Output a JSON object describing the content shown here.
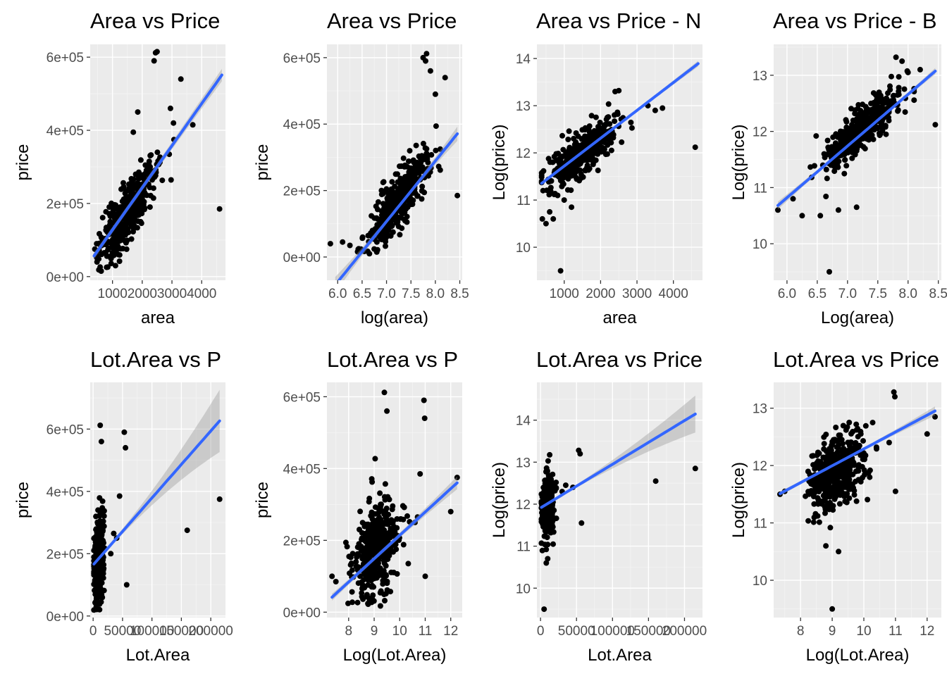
{
  "chart_data": [
    {
      "type": "scatter",
      "title": "Area vs Price",
      "xlabel": "area",
      "ylabel": "price",
      "xlim": [
        250,
        4800
      ],
      "ylim": [
        -10000,
        635000
      ],
      "xticks": [
        {
          "v": 1000,
          "label": "1000"
        },
        {
          "v": 2000,
          "label": "2000"
        },
        {
          "v": 3000,
          "label": "3000"
        },
        {
          "v": 4000,
          "label": "4000"
        }
      ],
      "yticks": [
        {
          "v": 0,
          "label": "0e+00"
        },
        {
          "v": 200000,
          "label": "2e+05"
        },
        {
          "v": 400000,
          "label": "4e+05"
        },
        {
          "v": 600000,
          "label": "6e+05"
        }
      ],
      "cloud": {
        "x_mean": 1500,
        "x_sd": 470,
        "x_min": 380,
        "x_max": 3300,
        "slope": 112,
        "intercept": 4000,
        "resid_sd": 38000,
        "y_min": 15000,
        "n": 420,
        "seed": 11
      },
      "points": [
        [
          2450,
          612000
        ],
        [
          2500,
          615000
        ],
        [
          2400,
          590000
        ],
        [
          4600,
          185000
        ],
        [
          3300,
          540000
        ],
        [
          3700,
          415000
        ],
        [
          1850,
          450000
        ],
        [
          1700,
          395000
        ],
        [
          2950,
          460000
        ],
        [
          3050,
          420000
        ],
        [
          1200,
          60000
        ],
        [
          900,
          55000
        ],
        [
          480,
          40000
        ],
        [
          620,
          15000
        ],
        [
          1100,
          30000
        ]
      ],
      "fit": {
        "intercept": 13000,
        "slope": 115,
        "x0": 380,
        "x1": 4680,
        "band_a": 8000,
        "band_b": 9000,
        "band_center": 1500
      },
      "fit_color": "#3366ff",
      "grid": true
    },
    {
      "type": "scatter",
      "title": "Area vs Price",
      "xlabel": "log(area)",
      "ylabel": "price",
      "xlim": [
        5.78,
        8.55
      ],
      "ylim": [
        -70000,
        640000
      ],
      "xticks": [
        {
          "v": 6.0,
          "label": "6.0"
        },
        {
          "v": 6.5,
          "label": "6.5"
        },
        {
          "v": 7.0,
          "label": "7.0"
        },
        {
          "v": 7.5,
          "label": "7.5"
        },
        {
          "v": 8.0,
          "label": "8.0"
        },
        {
          "v": 8.5,
          "label": "8.5"
        }
      ],
      "yticks": [
        {
          "v": 0,
          "label": "0e+00"
        },
        {
          "v": 200000,
          "label": "2e+05"
        },
        {
          "v": 400000,
          "label": "4e+05"
        },
        {
          "v": 600000,
          "label": "6e+05"
        }
      ],
      "cloud": {
        "x_mean": 7.25,
        "x_sd": 0.3,
        "x_min": 6.3,
        "x_max": 8.1,
        "slope": 185000,
        "intercept": -1172000,
        "resid_sd": 40000,
        "y_min": 15000,
        "n": 420,
        "seed": 23
      },
      "points": [
        [
          5.85,
          40000
        ],
        [
          6.1,
          45000
        ],
        [
          6.25,
          35000
        ],
        [
          6.8,
          15000
        ],
        [
          6.65,
          10000
        ],
        [
          8.45,
          185000
        ],
        [
          8.2,
          540000
        ],
        [
          8.0,
          490000
        ],
        [
          7.82,
          612000
        ],
        [
          7.8,
          590000
        ],
        [
          7.75,
          600000
        ],
        [
          7.9,
          560000
        ]
      ],
      "fit": {
        "intercept": -1167000,
        "slope": 182000,
        "x0": 5.95,
        "x1": 8.45,
        "band_a": 6000,
        "band_b": 18000,
        "band_center": 7.25
      },
      "fit_color": "#3366ff",
      "grid": true
    },
    {
      "type": "scatter",
      "title": "Area vs Price - N",
      "xlabel": "area",
      "ylabel": "Log(price)",
      "xlim": [
        250,
        4800
      ],
      "ylim": [
        9.3,
        14.3
      ],
      "xticks": [
        {
          "v": 1000,
          "label": "1000"
        },
        {
          "v": 2000,
          "label": "2000"
        },
        {
          "v": 3000,
          "label": "3000"
        },
        {
          "v": 4000,
          "label": "4000"
        }
      ],
      "yticks": [
        {
          "v": 10,
          "label": "10"
        },
        {
          "v": 11,
          "label": "11"
        },
        {
          "v": 12,
          "label": "12"
        },
        {
          "v": 13,
          "label": "13"
        },
        {
          "v": 14,
          "label": "14"
        }
      ],
      "cloud": {
        "x_mean": 1500,
        "x_sd": 470,
        "x_min": 380,
        "x_max": 3300,
        "slope": 0.00058,
        "intercept": 11.13,
        "resid_sd": 0.22,
        "y_min": 10.4,
        "n": 420,
        "seed": 37
      },
      "points": [
        [
          4600,
          12.12
        ],
        [
          3300,
          13.0
        ],
        [
          3500,
          12.9
        ],
        [
          3700,
          12.95
        ],
        [
          2400,
          13.3
        ],
        [
          2500,
          13.32
        ],
        [
          900,
          9.5
        ],
        [
          400,
          10.6
        ],
        [
          500,
          10.5
        ],
        [
          600,
          10.75
        ],
        [
          700,
          10.6
        ],
        [
          1000,
          11.0
        ],
        [
          1200,
          10.85
        ]
      ],
      "fit": {
        "intercept": 11.13,
        "slope": 0.00059,
        "x0": 380,
        "x1": 4680,
        "band_a": 0.02,
        "band_b": 0.04,
        "band_center": 1500
      },
      "fit_color": "#3366ff",
      "grid": true
    },
    {
      "type": "scatter",
      "title": "Area vs Price - B",
      "xlabel": "Log(area)",
      "ylabel": "Log(price)",
      "xlim": [
        5.78,
        8.55
      ],
      "ylim": [
        9.35,
        13.55
      ],
      "xticks": [
        {
          "v": 6.0,
          "label": "6.0"
        },
        {
          "v": 6.5,
          "label": "6.5"
        },
        {
          "v": 7.0,
          "label": "7.0"
        },
        {
          "v": 7.5,
          "label": "7.5"
        },
        {
          "v": 8.0,
          "label": "8.0"
        },
        {
          "v": 8.5,
          "label": "8.5"
        }
      ],
      "yticks": [
        {
          "v": 10,
          "label": "10"
        },
        {
          "v": 11,
          "label": "11"
        },
        {
          "v": 12,
          "label": "12"
        },
        {
          "v": 13,
          "label": "13"
        }
      ],
      "cloud": {
        "x_mean": 7.25,
        "x_sd": 0.3,
        "x_min": 6.3,
        "x_max": 8.1,
        "slope": 0.92,
        "intercept": 5.4,
        "resid_sd": 0.2,
        "y_min": 10.4,
        "n": 420,
        "seed": 41
      },
      "points": [
        [
          5.85,
          10.6
        ],
        [
          6.1,
          10.8
        ],
        [
          6.25,
          10.5
        ],
        [
          6.55,
          10.5
        ],
        [
          6.7,
          9.5
        ],
        [
          6.85,
          10.6
        ],
        [
          7.15,
          10.65
        ],
        [
          8.45,
          12.12
        ],
        [
          8.2,
          13.1
        ],
        [
          7.8,
          13.32
        ],
        [
          7.9,
          13.25
        ],
        [
          8.0,
          13.05
        ]
      ],
      "fit": {
        "intercept": 5.3,
        "slope": 0.92,
        "x0": 5.85,
        "x1": 8.45,
        "band_a": 0.02,
        "band_b": 0.05,
        "band_center": 7.25
      },
      "fit_color": "#3366ff",
      "grid": true
    },
    {
      "type": "scatter",
      "title": "Lot.Area vs P",
      "xlabel": "Lot.Area",
      "ylabel": "price",
      "xlim": [
        -5000,
        225000
      ],
      "ylim": [
        -5000,
        750000
      ],
      "xticks": [
        {
          "v": 0,
          "label": "0"
        },
        {
          "v": 50000,
          "label": "50000"
        },
        {
          "v": 100000,
          "label": "100000"
        },
        {
          "v": 150000,
          "label": "150000"
        },
        {
          "v": 200000,
          "label": "200000"
        }
      ],
      "yticks": [
        {
          "v": 0,
          "label": "0e+00"
        },
        {
          "v": 200000,
          "label": "2e+05"
        },
        {
          "v": 400000,
          "label": "4e+05"
        },
        {
          "v": 600000,
          "label": "6e+05"
        }
      ],
      "cloud": {
        "x_mean": 9500,
        "x_sd": 4000,
        "x_min": 1300,
        "x_max": 22000,
        "slope": 4,
        "intercept": 140000,
        "resid_sd": 60000,
        "y_min": 12000,
        "n": 420,
        "seed": 53
      },
      "points": [
        [
          215000,
          375000
        ],
        [
          160000,
          275000
        ],
        [
          53000,
          590000
        ],
        [
          55000,
          540000
        ],
        [
          45000,
          385000
        ],
        [
          57000,
          100000
        ],
        [
          40000,
          250000
        ],
        [
          35000,
          265000
        ],
        [
          30000,
          200000
        ],
        [
          12000,
          612000
        ],
        [
          14000,
          560000
        ]
      ],
      "fit": {
        "intercept": 164000,
        "slope": 2.15,
        "x0": 1300,
        "x1": 215000,
        "band_a": 5000,
        "band_b": 95000,
        "band_center": 10000
      },
      "fit_color": "#3366ff",
      "grid": true
    },
    {
      "type": "scatter",
      "title": "Lot.Area vs P",
      "xlabel": "Log(Lot.Area)",
      "ylabel": "price",
      "xlim": [
        7.15,
        12.45
      ],
      "ylim": [
        -15000,
        640000
      ],
      "xticks": [
        {
          "v": 8,
          "label": "8"
        },
        {
          "v": 9,
          "label": "9"
        },
        {
          "v": 10,
          "label": "10"
        },
        {
          "v": 11,
          "label": "11"
        },
        {
          "v": 12,
          "label": "12"
        }
      ],
      "yticks": [
        {
          "v": 0,
          "label": "0e+00"
        },
        {
          "v": 200000,
          "label": "2e+05"
        },
        {
          "v": 400000,
          "label": "4e+05"
        },
        {
          "v": 600000,
          "label": "6e+05"
        }
      ],
      "cloud": {
        "x_mean": 9.1,
        "x_sd": 0.45,
        "x_min": 7.4,
        "x_max": 10.7,
        "slope": 60000,
        "intercept": -370000,
        "resid_sd": 62000,
        "y_min": 12000,
        "n": 420,
        "seed": 67
      },
      "points": [
        [
          12.25,
          375000
        ],
        [
          12.0,
          280000
        ],
        [
          10.95,
          590000
        ],
        [
          10.98,
          540000
        ],
        [
          10.8,
          385000
        ],
        [
          11.0,
          100000
        ],
        [
          9.4,
          612000
        ],
        [
          9.5,
          560000
        ],
        [
          7.35,
          100000
        ],
        [
          7.5,
          85000
        ],
        [
          10.6,
          250000
        ],
        [
          10.7,
          265000
        ]
      ],
      "fit": {
        "intercept": -436000,
        "slope": 65000,
        "x0": 7.35,
        "x1": 12.25,
        "band_a": 6000,
        "band_b": 12000,
        "band_center": 9.1
      },
      "fit_color": "#3366ff",
      "grid": true
    },
    {
      "type": "scatter",
      "title": "Lot.Area vs Price",
      "xlabel": "Lot.Area",
      "ylabel": "Log(price)",
      "xlim": [
        -5000,
        225000
      ],
      "ylim": [
        9.3,
        14.9
      ],
      "xticks": [
        {
          "v": 0,
          "label": "0"
        },
        {
          "v": 50000,
          "label": "50000"
        },
        {
          "v": 100000,
          "label": "100000"
        },
        {
          "v": 150000,
          "label": "150000"
        },
        {
          "v": 200000,
          "label": "200000"
        }
      ],
      "yticks": [
        {
          "v": 10,
          "label": "10"
        },
        {
          "v": 11,
          "label": "11"
        },
        {
          "v": 12,
          "label": "12"
        },
        {
          "v": 13,
          "label": "13"
        },
        {
          "v": 14,
          "label": "14"
        }
      ],
      "cloud": {
        "x_mean": 9500,
        "x_sd": 4000,
        "x_min": 1300,
        "x_max": 22000,
        "slope": 1e-05,
        "intercept": 11.9,
        "resid_sd": 0.35,
        "y_min": 10.6,
        "n": 420,
        "seed": 71
      },
      "points": [
        [
          215000,
          12.85
        ],
        [
          160000,
          12.55
        ],
        [
          53000,
          13.28
        ],
        [
          55000,
          13.2
        ],
        [
          45000,
          12.4
        ],
        [
          57000,
          11.55
        ],
        [
          35000,
          12.45
        ],
        [
          30000,
          12.3
        ],
        [
          5000,
          9.5
        ],
        [
          8000,
          10.6
        ],
        [
          10000,
          10.7
        ]
      ],
      "fit": {
        "intercept": 11.91,
        "slope": 1.04e-05,
        "x0": 1300,
        "x1": 215000,
        "band_a": 0.02,
        "band_b": 0.42,
        "band_center": 10000
      },
      "fit_color": "#3366ff",
      "grid": true
    },
    {
      "type": "scatter",
      "title": "Lot.Area vs Price",
      "xlabel": "Log(Lot.Area)",
      "ylabel": "Log(price)",
      "xlim": [
        7.15,
        12.45
      ],
      "ylim": [
        9.35,
        13.45
      ],
      "xticks": [
        {
          "v": 8,
          "label": "8"
        },
        {
          "v": 9,
          "label": "9"
        },
        {
          "v": 10,
          "label": "10"
        },
        {
          "v": 11,
          "label": "11"
        },
        {
          "v": 12,
          "label": "12"
        }
      ],
      "yticks": [
        {
          "v": 10,
          "label": "10"
        },
        {
          "v": 11,
          "label": "11"
        },
        {
          "v": 12,
          "label": "12"
        },
        {
          "v": 13,
          "label": "13"
        }
      ],
      "cloud": {
        "x_mean": 9.1,
        "x_sd": 0.45,
        "x_min": 7.4,
        "x_max": 10.7,
        "slope": 0.3,
        "intercept": 9.18,
        "resid_sd": 0.33,
        "y_min": 10.45,
        "n": 420,
        "seed": 83
      },
      "points": [
        [
          12.25,
          12.85
        ],
        [
          12.0,
          12.55
        ],
        [
          10.95,
          13.28
        ],
        [
          10.98,
          13.2
        ],
        [
          11.0,
          11.55
        ],
        [
          10.8,
          12.4
        ],
        [
          9.0,
          9.5
        ],
        [
          7.35,
          11.5
        ],
        [
          7.5,
          11.55
        ],
        [
          8.8,
          10.6
        ],
        [
          9.2,
          10.5
        ]
      ],
      "fit": {
        "intercept": 9.35,
        "slope": 0.294,
        "x0": 7.35,
        "x1": 12.25,
        "band_a": 0.02,
        "band_b": 0.06,
        "band_center": 9.1
      },
      "fit_color": "#3366ff",
      "grid": true
    }
  ]
}
